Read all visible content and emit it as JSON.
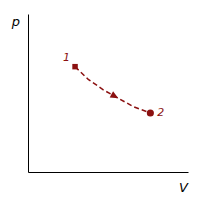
{
  "chart_data": {
    "type": "line",
    "x": [
      0.35,
      0.42,
      0.5,
      0.58,
      0.66,
      0.75
    ],
    "values": [
      0.7,
      0.64,
      0.59,
      0.55,
      0.51,
      0.48
    ],
    "color": "#8B1010",
    "line_style": "dashed",
    "xlabel": "V",
    "ylabel": "p",
    "xlim": [
      0.1,
      0.95
    ],
    "ylim": [
      0.2,
      0.95
    ],
    "tick_labels": false,
    "annotations": [
      {
        "text": "1",
        "x": 0.35,
        "y": 0.7,
        "marker": "square"
      },
      {
        "text": "2",
        "x": 0.75,
        "y": 0.48,
        "marker": "circle"
      }
    ]
  }
}
